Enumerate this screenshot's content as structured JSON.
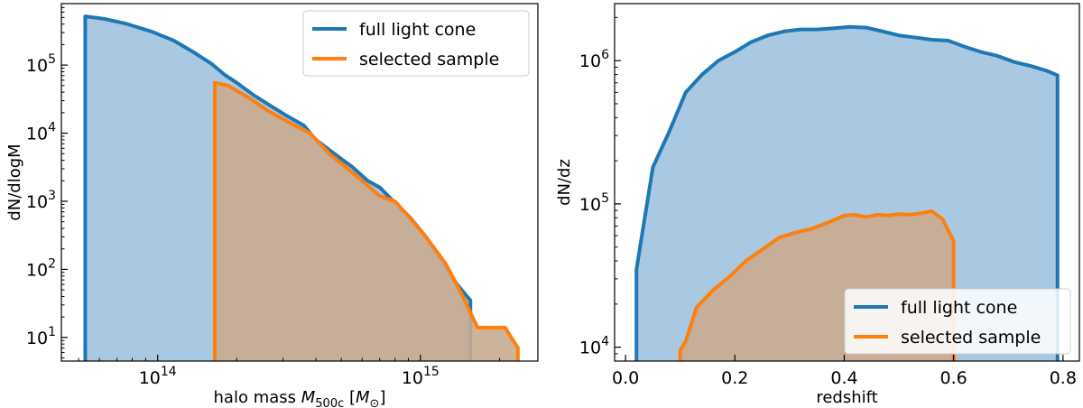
{
  "chart_data": [
    {
      "type": "area",
      "xscale": "log",
      "yscale": "log",
      "xlabel": "halo mass",
      "xlabel_math": "M",
      "xlabel_sub": "500c",
      "xlabel_unit_open": "[",
      "xlabel_unit": "M",
      "xlabel_unit_sub": "⊙",
      "xlabel_unit_close": "]",
      "ylabel": "dN/dlogM",
      "xlim": [
        43000000000000.0,
        2800000000000000.0
      ],
      "ylim": [
        4.5,
        800000
      ],
      "xticks": [
        {
          "value": 100000000000000.0,
          "base": "10",
          "exp": "14"
        },
        {
          "value": 1000000000000000.0,
          "base": "10",
          "exp": "15"
        }
      ],
      "yticks": [
        {
          "value": 10,
          "base": "10",
          "exp": "1"
        },
        {
          "value": 100,
          "base": "10",
          "exp": "2"
        },
        {
          "value": 1000,
          "base": "10",
          "exp": "3"
        },
        {
          "value": 10000,
          "base": "10",
          "exp": "4"
        },
        {
          "value": 100000,
          "base": "10",
          "exp": "5"
        }
      ],
      "legend_position": "upper right",
      "series": [
        {
          "name": "full light cone",
          "color": "#1f77b4",
          "fill": "#a9c9e3",
          "x": [
            53000000000000.0,
            62000000000000.0,
            75000000000000.0,
            95000000000000.0,
            115000000000000.0,
            135000000000000.0,
            160000000000000.0,
            180000000000000.0,
            200000000000000.0,
            230000000000000.0,
            270000000000000.0,
            310000000000000.0,
            360000000000000.0,
            400000000000000.0,
            470000000000000.0,
            550000000000000.0,
            630000000000000.0,
            700000000000000.0,
            800000000000000.0,
            920000000000000.0,
            1050000000000000.0,
            1200000000000000.0,
            1380000000000000.0,
            1550000000000000.0
          ],
          "y": [
            520000,
            480000,
            410000,
            310000,
            230000,
            160000,
            105000,
            72000,
            55000,
            37000,
            25000,
            18000,
            13000,
            8000,
            5000,
            3200,
            2000,
            1600,
            950,
            560,
            300,
            140,
            60,
            35
          ]
        },
        {
          "name": "selected sample",
          "color": "#ff7f0e",
          "fill": "#c9ab90",
          "x": [
            165000000000000.0,
            185000000000000.0,
            220000000000000.0,
            260000000000000.0,
            310000000000000.0,
            380000000000000.0,
            450000000000000.0,
            530000000000000.0,
            600000000000000.0,
            700000000000000.0,
            800000000000000.0,
            920000000000000.0,
            1050000000000000.0,
            1250000000000000.0,
            1450000000000000.0,
            1650000000000000.0,
            1850000000000000.0,
            2100000000000000.0,
            2350000000000000.0
          ],
          "y": [
            55000,
            50000,
            34000,
            22000,
            15000,
            10000,
            5000,
            3000,
            2000,
            1200,
            1000,
            550,
            300,
            120,
            40,
            14,
            14,
            14,
            7
          ]
        }
      ]
    },
    {
      "type": "area",
      "xscale": "linear",
      "yscale": "log",
      "xlabel": "redshift",
      "ylabel": "dN/dz",
      "xlim": [
        -0.02,
        0.83
      ],
      "ylim": [
        8000,
        2500000
      ],
      "xticks": [
        {
          "value": 0.0,
          "label": "0.0"
        },
        {
          "value": 0.2,
          "label": "0.2"
        },
        {
          "value": 0.4,
          "label": "0.4"
        },
        {
          "value": 0.6,
          "label": "0.6"
        },
        {
          "value": 0.8,
          "label": "0.8"
        }
      ],
      "yticks": [
        {
          "value": 10000,
          "base": "10",
          "exp": "4"
        },
        {
          "value": 100000,
          "base": "10",
          "exp": "5"
        },
        {
          "value": 1000000,
          "base": "10",
          "exp": "6"
        }
      ],
      "legend_position": "lower right",
      "series": [
        {
          "name": "full light cone",
          "color": "#1f77b4",
          "fill": "#a9c9e3",
          "x": [
            0.02,
            0.05,
            0.08,
            0.11,
            0.14,
            0.17,
            0.2,
            0.23,
            0.26,
            0.29,
            0.32,
            0.35,
            0.38,
            0.41,
            0.44,
            0.47,
            0.5,
            0.53,
            0.56,
            0.59,
            0.62,
            0.65,
            0.68,
            0.71,
            0.74,
            0.77,
            0.79
          ],
          "y": [
            35000,
            180000,
            320000,
            600000,
            800000,
            1000000,
            1150000,
            1350000,
            1500000,
            1600000,
            1650000,
            1650000,
            1680000,
            1720000,
            1700000,
            1600000,
            1500000,
            1450000,
            1400000,
            1380000,
            1250000,
            1150000,
            1080000,
            980000,
            920000,
            850000,
            790000
          ]
        },
        {
          "name": "selected sample",
          "color": "#ff7f0e",
          "fill": "#c9ab90",
          "x": [
            0.1,
            0.11,
            0.13,
            0.16,
            0.19,
            0.22,
            0.25,
            0.28,
            0.31,
            0.34,
            0.37,
            0.4,
            0.42,
            0.44,
            0.46,
            0.48,
            0.5,
            0.52,
            0.54,
            0.56,
            0.58,
            0.595,
            0.6
          ],
          "y": [
            9500,
            11000,
            19000,
            25000,
            31000,
            40000,
            48000,
            58000,
            63000,
            67000,
            74000,
            83000,
            84000,
            81000,
            84000,
            83000,
            85000,
            84000,
            86000,
            89000,
            78000,
            60000,
            55000
          ]
        }
      ]
    }
  ]
}
